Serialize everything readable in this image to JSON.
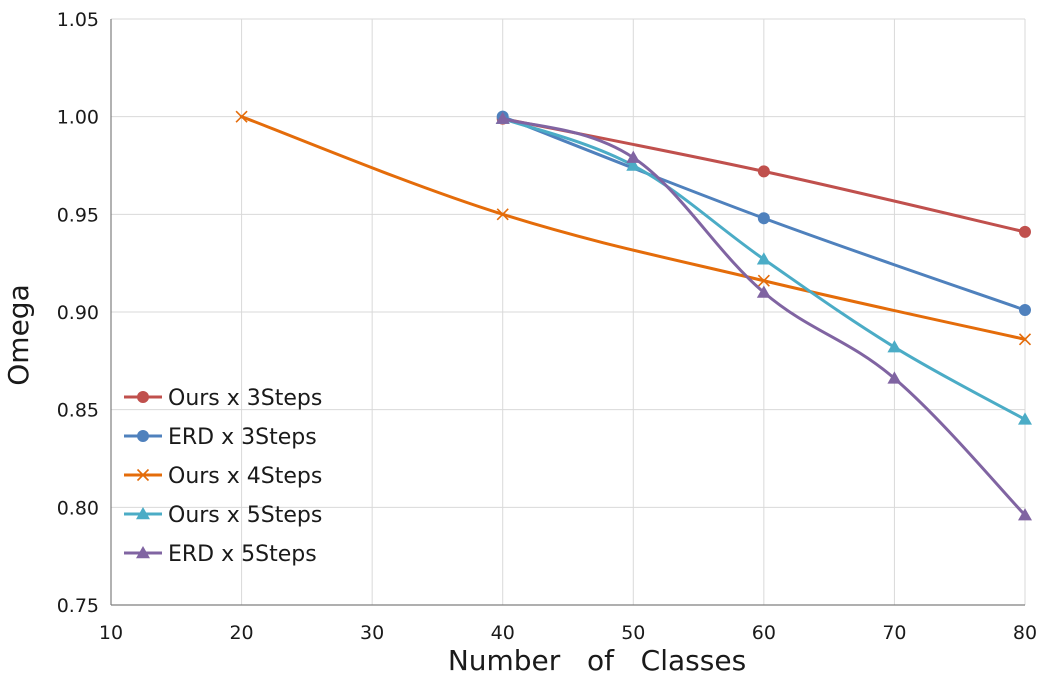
{
  "chart_data": {
    "type": "line",
    "title": "",
    "xlabel": "Number   of   Classes",
    "ylabel": "Omega",
    "xlim": [
      10,
      80
    ],
    "ylim": [
      0.75,
      1.05
    ],
    "x_ticks": [
      10,
      20,
      30,
      40,
      50,
      60,
      70,
      80
    ],
    "x_tick_labels": [
      "10",
      "20",
      "30",
      "40",
      "50",
      "60",
      "70",
      "80"
    ],
    "y_ticks": [
      0.75,
      0.8,
      0.85,
      0.9,
      0.95,
      1.0,
      1.05
    ],
    "y_tick_labels": [
      "0.75",
      "0.80",
      "0.85",
      "0.90",
      "0.95",
      "1.00",
      "1.05"
    ],
    "grid": true,
    "smooth": true,
    "legend_position": "bottom-left",
    "series": [
      {
        "name": "Ours x 3Steps",
        "color": "#c0504d",
        "marker": "circle",
        "x": [
          40,
          60,
          80
        ],
        "y": [
          0.999,
          0.972,
          0.941
        ]
      },
      {
        "name": "ERD x 3Steps",
        "color": "#4f81bd",
        "marker": "circle",
        "x": [
          40,
          60,
          80
        ],
        "y": [
          1.0,
          0.948,
          0.901
        ]
      },
      {
        "name": "Ours x 4Steps",
        "color": "#e46c0a",
        "marker": "x",
        "x": [
          20,
          40,
          60,
          80
        ],
        "y": [
          1.0,
          0.95,
          0.916,
          0.886
        ]
      },
      {
        "name": "Ours x 5Steps",
        "color": "#4bacc6",
        "marker": "triangle",
        "x": [
          40,
          50,
          60,
          70,
          80
        ],
        "y": [
          0.999,
          0.975,
          0.927,
          0.882,
          0.845
        ]
      },
      {
        "name": "ERD x 5Steps",
        "color": "#8064a2",
        "marker": "triangle",
        "x": [
          40,
          50,
          60,
          70,
          80
        ],
        "y": [
          0.999,
          0.979,
          0.91,
          0.866,
          0.796
        ]
      }
    ]
  }
}
